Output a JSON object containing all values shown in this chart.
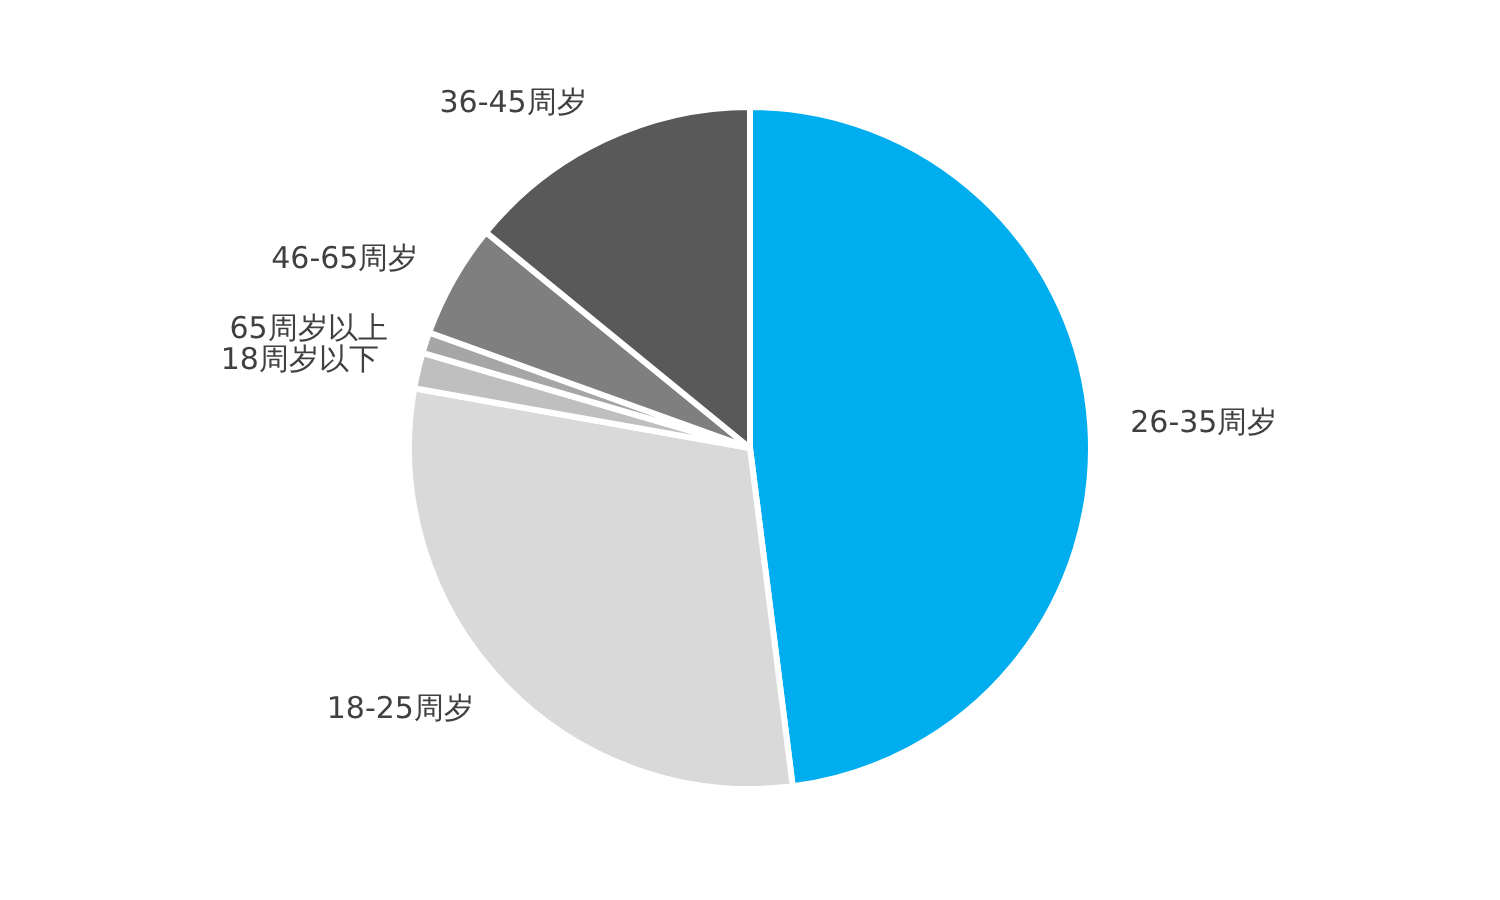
{
  "chart_data": {
    "type": "pie",
    "categories": [
      "26-35周岁",
      "18-25周岁",
      "18周岁以下",
      "65周岁以上",
      "46-65周岁",
      "36-45周岁"
    ],
    "values": [
      48,
      29.8,
      1.7,
      1,
      5.4,
      14.1
    ],
    "colors": [
      "#00aeef",
      "#d9d9d9",
      "#bfbfbf",
      "#a6a6a6",
      "#7f7f7f",
      "#595959"
    ],
    "legend": false
  }
}
